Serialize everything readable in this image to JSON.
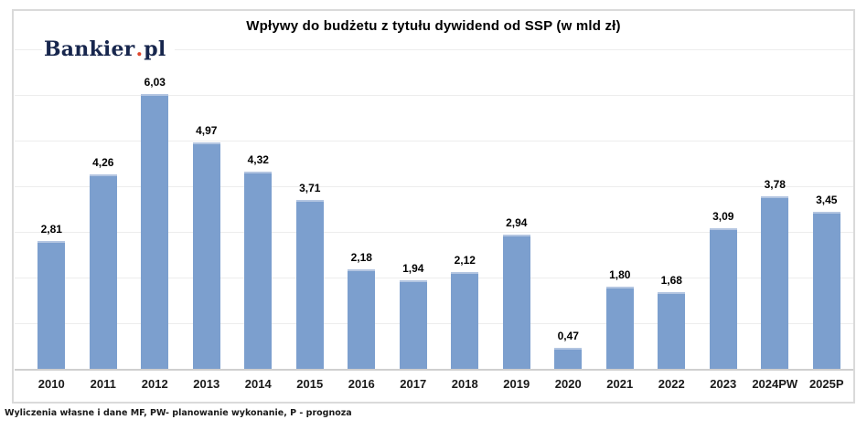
{
  "page": {
    "background": "#ffffff",
    "frame_border_color": "#dadada"
  },
  "logo": {
    "text_main": "Bankier",
    "dot": ".",
    "text_suffix": "pl",
    "color": "#17264d",
    "dot_color": "#e0472e"
  },
  "chart_data": {
    "type": "bar",
    "title": "Wpływy do budżetu z tytułu dywidend od SSP (w mld zł)",
    "categories": [
      "2010",
      "2011",
      "2012",
      "2013",
      "2014",
      "2015",
      "2016",
      "2017",
      "2018",
      "2019",
      "2020",
      "2021",
      "2022",
      "2023",
      "2024PW",
      "2025P"
    ],
    "values": [
      2.81,
      4.26,
      6.03,
      4.97,
      4.32,
      3.71,
      2.18,
      1.94,
      2.12,
      2.94,
      0.47,
      1.8,
      1.68,
      3.09,
      3.78,
      3.45
    ],
    "value_labels": [
      "2,81",
      "4,26",
      "6,03",
      "4,97",
      "4,32",
      "3,71",
      "2,18",
      "1,94",
      "2,12",
      "2,94",
      "0,47",
      "1,80",
      "1,68",
      "3,09",
      "3,78",
      "3,45"
    ],
    "xlabel": "",
    "ylabel": "",
    "ylim": [
      0,
      7
    ],
    "gridline_step": 1,
    "grid": true,
    "legend": "none",
    "bar_color": "#7C9FCE",
    "bar_top_highlight": "#b3c5e1",
    "gridline_color": "#ededed",
    "axis_color": "#cfcfcf"
  },
  "footer": {
    "note": "Wyliczenia własne i dane MF, PW- planowanie wykonanie, P - prognoza"
  }
}
